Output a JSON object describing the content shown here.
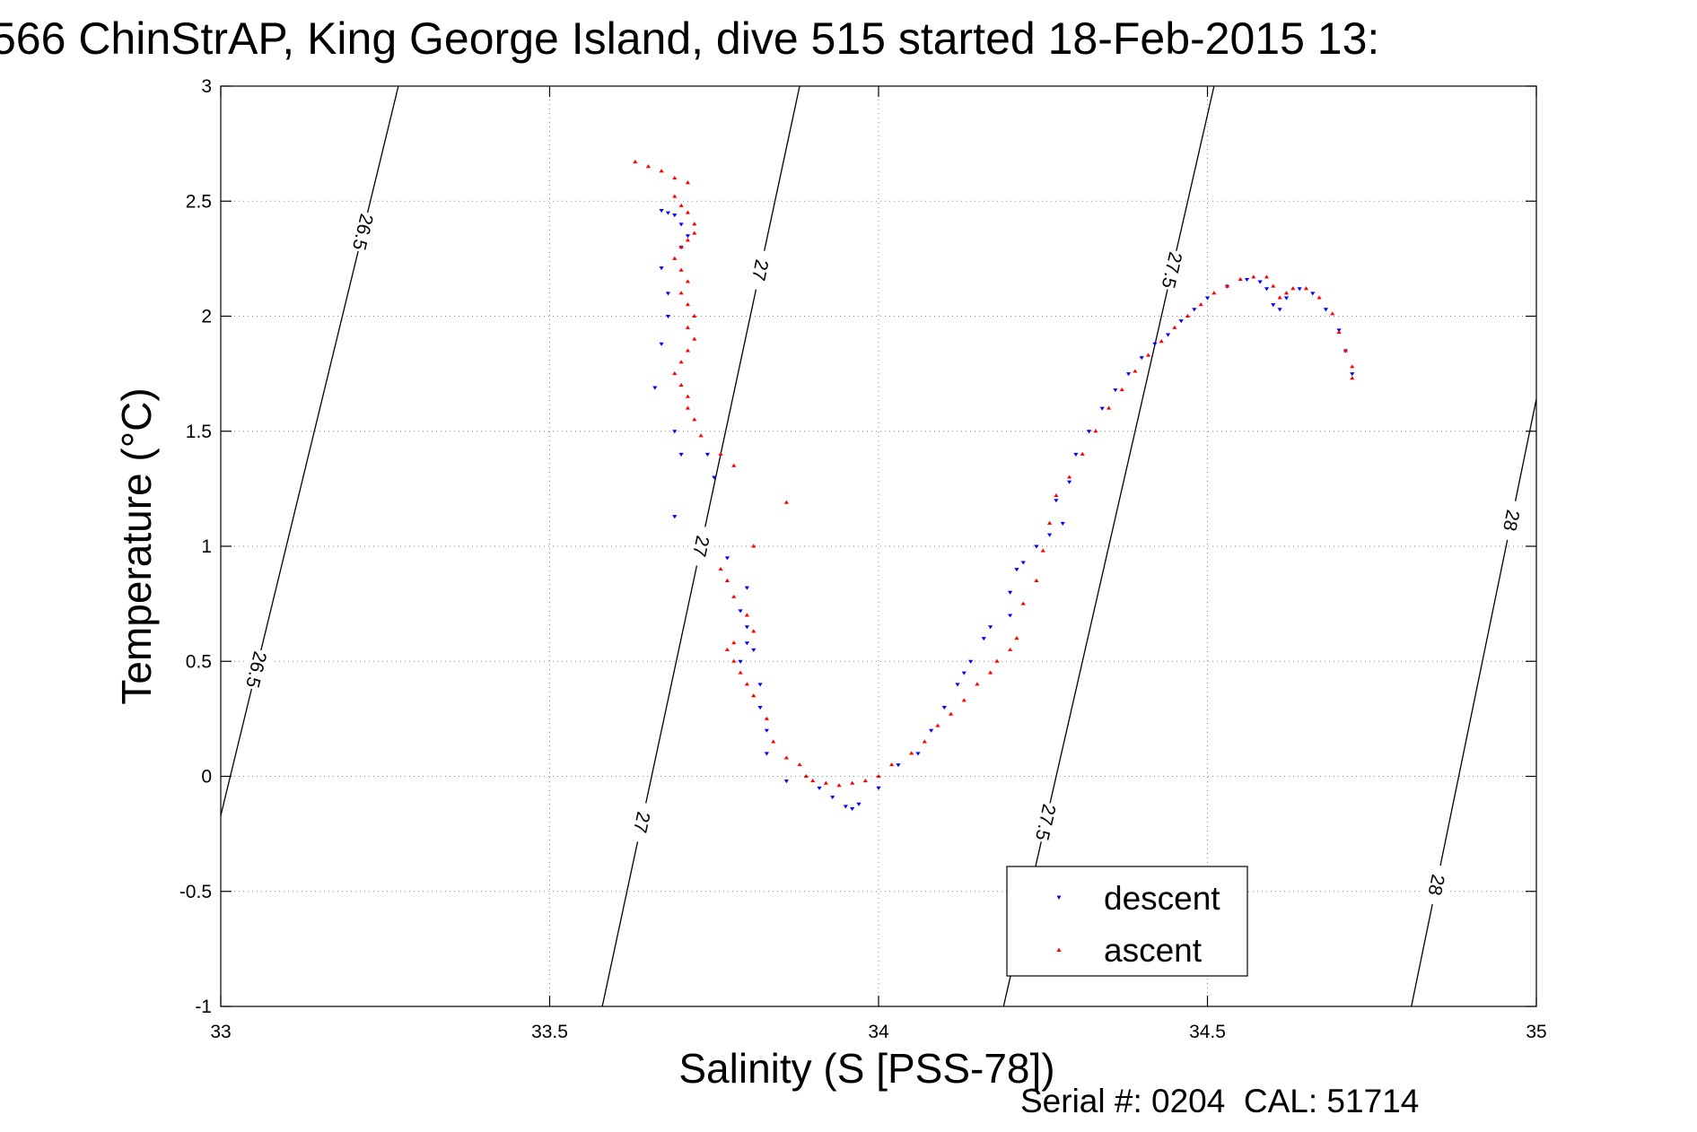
{
  "chart_data": {
    "type": "scatter",
    "title": "566 ChinStrAP, King George Island, dive 515 started 18-Feb-2015 13:",
    "xlabel": "Salinity (S [PSS-78])",
    "ylabel": "Temperature (°C)",
    "xlim": [
      33,
      35
    ],
    "ylim": [
      -1,
      3
    ],
    "x_ticks": [
      "33",
      "33.5",
      "34",
      "34.5",
      "35"
    ],
    "y_ticks": [
      "-1",
      "-0.5",
      "0",
      "0.5",
      "1",
      "1.5",
      "2",
      "2.5",
      "3"
    ],
    "grid": true,
    "legend_position": "bottom-right",
    "footer": "Serial #: 0204  CAL: 51714",
    "colors": {
      "descent": "#0000ff",
      "ascent": "#ff0000",
      "isopycnal": "#000000"
    },
    "isopycnals": [
      {
        "label": "26.5",
        "label_count": 2,
        "points": [
          [
            33.0,
            -0.17
          ],
          [
            33.27,
            3.0
          ]
        ]
      },
      {
        "label": "27",
        "label_count": 3,
        "points": [
          [
            33.58,
            -1.0
          ],
          [
            33.88,
            3.0
          ]
        ]
      },
      {
        "label": "27.5",
        "label_count": 2,
        "points": [
          [
            34.19,
            -1.0
          ],
          [
            34.51,
            3.0
          ]
        ]
      },
      {
        "label": "28",
        "label_count": 2,
        "points": [
          [
            34.81,
            -1.0
          ],
          [
            35.0,
            1.64
          ]
        ]
      }
    ],
    "series": [
      {
        "name": "descent",
        "marker": "triangle-down",
        "points": [
          [
            33.67,
            2.46
          ],
          [
            33.68,
            2.45
          ],
          [
            33.69,
            2.44
          ],
          [
            33.7,
            2.4
          ],
          [
            33.71,
            2.35
          ],
          [
            33.7,
            2.3
          ],
          [
            33.67,
            2.21
          ],
          [
            33.68,
            2.1
          ],
          [
            33.68,
            2.0
          ],
          [
            33.67,
            1.88
          ],
          [
            33.66,
            1.69
          ],
          [
            33.69,
            1.5
          ],
          [
            33.7,
            1.4
          ],
          [
            33.69,
            1.13
          ],
          [
            33.74,
            1.4
          ],
          [
            33.75,
            1.3
          ],
          [
            33.77,
            0.95
          ],
          [
            33.8,
            0.82
          ],
          [
            33.79,
            0.72
          ],
          [
            33.8,
            0.65
          ],
          [
            33.8,
            0.58
          ],
          [
            33.81,
            0.55
          ],
          [
            33.79,
            0.5
          ],
          [
            33.82,
            0.4
          ],
          [
            33.82,
            0.3
          ],
          [
            33.83,
            0.2
          ],
          [
            33.83,
            0.1
          ],
          [
            33.86,
            -0.02
          ],
          [
            33.91,
            -0.05
          ],
          [
            33.93,
            -0.09
          ],
          [
            33.95,
            -0.13
          ],
          [
            33.96,
            -0.14
          ],
          [
            33.97,
            -0.12
          ],
          [
            34.0,
            -0.05
          ],
          [
            34.03,
            0.05
          ],
          [
            34.06,
            0.1
          ],
          [
            34.08,
            0.2
          ],
          [
            34.1,
            0.3
          ],
          [
            34.12,
            0.4
          ],
          [
            34.13,
            0.45
          ],
          [
            34.14,
            0.5
          ],
          [
            34.16,
            0.6
          ],
          [
            34.17,
            0.65
          ],
          [
            34.2,
            0.7
          ],
          [
            34.2,
            0.8
          ],
          [
            34.21,
            0.9
          ],
          [
            34.22,
            0.93
          ],
          [
            34.24,
            1.0
          ],
          [
            34.26,
            1.05
          ],
          [
            34.28,
            1.1
          ],
          [
            34.27,
            1.2
          ],
          [
            34.29,
            1.28
          ],
          [
            34.3,
            1.4
          ],
          [
            34.32,
            1.5
          ],
          [
            34.34,
            1.6
          ],
          [
            34.36,
            1.68
          ],
          [
            34.38,
            1.75
          ],
          [
            34.4,
            1.82
          ],
          [
            34.42,
            1.88
          ],
          [
            34.44,
            1.92
          ],
          [
            34.46,
            1.98
          ],
          [
            34.48,
            2.03
          ],
          [
            34.5,
            2.08
          ],
          [
            34.53,
            2.13
          ],
          [
            34.56,
            2.16
          ],
          [
            34.58,
            2.15
          ],
          [
            34.59,
            2.12
          ],
          [
            34.6,
            2.05
          ],
          [
            34.61,
            2.03
          ],
          [
            34.62,
            2.08
          ],
          [
            34.64,
            2.12
          ],
          [
            34.66,
            2.1
          ],
          [
            34.68,
            2.03
          ],
          [
            34.7,
            1.94
          ],
          [
            34.71,
            1.85
          ],
          [
            34.72,
            1.75
          ]
        ]
      },
      {
        "name": "ascent",
        "marker": "triangle-up",
        "points": [
          [
            33.63,
            2.67
          ],
          [
            33.65,
            2.65
          ],
          [
            33.67,
            2.63
          ],
          [
            33.69,
            2.6
          ],
          [
            33.71,
            2.58
          ],
          [
            33.69,
            2.52
          ],
          [
            33.7,
            2.48
          ],
          [
            33.71,
            2.45
          ],
          [
            33.72,
            2.4
          ],
          [
            33.72,
            2.36
          ],
          [
            33.71,
            2.33
          ],
          [
            33.7,
            2.3
          ],
          [
            33.69,
            2.25
          ],
          [
            33.7,
            2.2
          ],
          [
            33.71,
            2.15
          ],
          [
            33.7,
            2.1
          ],
          [
            33.71,
            2.05
          ],
          [
            33.72,
            2.0
          ],
          [
            33.71,
            1.95
          ],
          [
            33.72,
            1.9
          ],
          [
            33.71,
            1.85
          ],
          [
            33.7,
            1.8
          ],
          [
            33.69,
            1.75
          ],
          [
            33.7,
            1.7
          ],
          [
            33.71,
            1.65
          ],
          [
            33.71,
            1.6
          ],
          [
            33.72,
            1.55
          ],
          [
            33.73,
            1.48
          ],
          [
            33.76,
            1.4
          ],
          [
            33.78,
            1.35
          ],
          [
            33.86,
            1.19
          ],
          [
            33.81,
            1.0
          ],
          [
            33.76,
            0.9
          ],
          [
            33.77,
            0.85
          ],
          [
            33.78,
            0.78
          ],
          [
            33.8,
            0.7
          ],
          [
            33.81,
            0.63
          ],
          [
            33.78,
            0.58
          ],
          [
            33.77,
            0.55
          ],
          [
            33.78,
            0.5
          ],
          [
            33.79,
            0.45
          ],
          [
            33.8,
            0.4
          ],
          [
            33.81,
            0.35
          ],
          [
            33.83,
            0.25
          ],
          [
            33.84,
            0.15
          ],
          [
            33.86,
            0.08
          ],
          [
            33.88,
            0.05
          ],
          [
            33.89,
            0.0
          ],
          [
            33.9,
            -0.02
          ],
          [
            33.92,
            -0.03
          ],
          [
            33.94,
            -0.04
          ],
          [
            33.96,
            -0.03
          ],
          [
            33.98,
            -0.02
          ],
          [
            34.0,
            0.0
          ],
          [
            34.02,
            0.05
          ],
          [
            34.05,
            0.1
          ],
          [
            34.07,
            0.15
          ],
          [
            34.09,
            0.22
          ],
          [
            34.11,
            0.27
          ],
          [
            34.13,
            0.33
          ],
          [
            34.15,
            0.4
          ],
          [
            34.17,
            0.45
          ],
          [
            34.18,
            0.5
          ],
          [
            34.2,
            0.55
          ],
          [
            34.21,
            0.6
          ],
          [
            34.22,
            0.75
          ],
          [
            34.24,
            0.85
          ],
          [
            34.25,
            0.98
          ],
          [
            34.26,
            1.1
          ],
          [
            34.27,
            1.22
          ],
          [
            34.29,
            1.3
          ],
          [
            34.31,
            1.4
          ],
          [
            34.33,
            1.5
          ],
          [
            34.35,
            1.6
          ],
          [
            34.37,
            1.68
          ],
          [
            34.39,
            1.76
          ],
          [
            34.41,
            1.83
          ],
          [
            34.43,
            1.89
          ],
          [
            34.45,
            1.95
          ],
          [
            34.47,
            2.0
          ],
          [
            34.49,
            2.05
          ],
          [
            34.51,
            2.1
          ],
          [
            34.53,
            2.13
          ],
          [
            34.55,
            2.16
          ],
          [
            34.57,
            2.17
          ],
          [
            34.59,
            2.17
          ],
          [
            34.6,
            2.13
          ],
          [
            34.61,
            2.08
          ],
          [
            34.62,
            2.1
          ],
          [
            34.63,
            2.12
          ],
          [
            34.65,
            2.12
          ],
          [
            34.67,
            2.08
          ],
          [
            34.69,
            2.01
          ],
          [
            34.7,
            1.93
          ],
          [
            34.71,
            1.85
          ],
          [
            34.72,
            1.78
          ],
          [
            34.72,
            1.73
          ]
        ]
      }
    ]
  }
}
